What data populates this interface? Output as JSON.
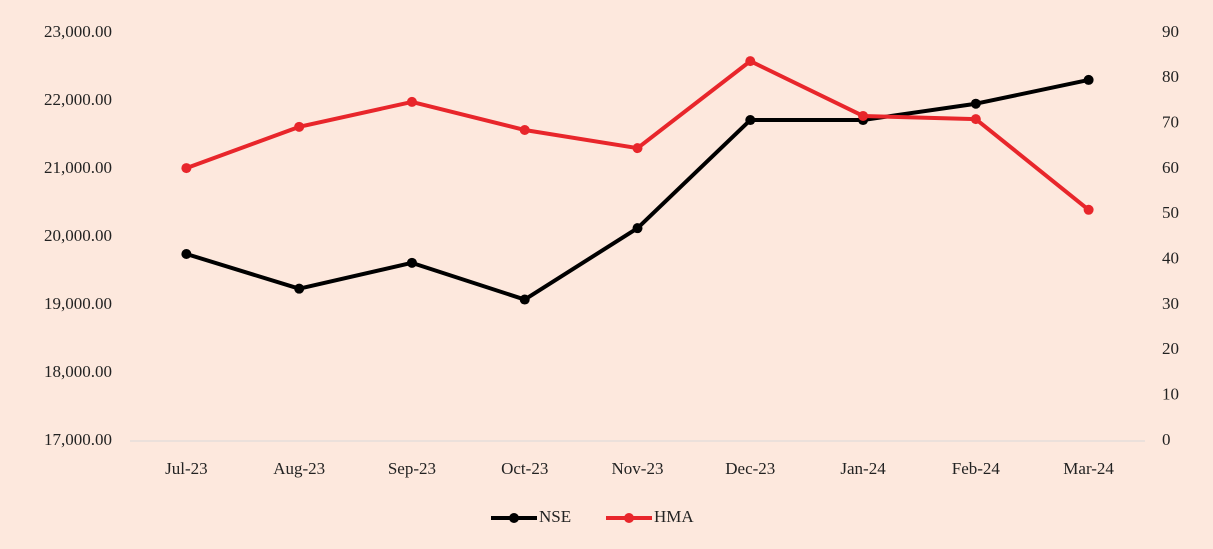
{
  "chart_data": {
    "type": "line",
    "categories": [
      "Jul-23",
      "Aug-23",
      "Sep-23",
      "Oct-23",
      "Nov-23",
      "Dec-23",
      "Jan-24",
      "Feb-24",
      "Mar-24"
    ],
    "series": [
      {
        "name": "NSE",
        "color": "#000000",
        "values": [
          19750,
          19240,
          19620,
          19080,
          20130,
          21720,
          21720,
          21960,
          22310
        ]
      },
      {
        "name": "HMA",
        "color": "#e8262b",
        "axis": "y2",
        "values": [
          60.2,
          69.3,
          74.8,
          68.6,
          64.6,
          83.8,
          71.7,
          71.0,
          51.0
        ]
      }
    ],
    "ylim": [
      17000,
      23000
    ],
    "yticks": [
      {
        "value": 17000,
        "label": "17,000.00"
      },
      {
        "value": 18000,
        "label": "18,000.00"
      },
      {
        "value": 19000,
        "label": "19,000.00"
      },
      {
        "value": 20000,
        "label": "20,000.00"
      },
      {
        "value": 21000,
        "label": "21,000.00"
      },
      {
        "value": 22000,
        "label": "22,000.00"
      },
      {
        "value": 23000,
        "label": "23,000.00"
      }
    ],
    "y2lim": [
      0,
      90
    ],
    "y2ticks": [
      0,
      10,
      20,
      30,
      40,
      50,
      60,
      70,
      80,
      90
    ],
    "grid": false,
    "legend": "bottom"
  }
}
